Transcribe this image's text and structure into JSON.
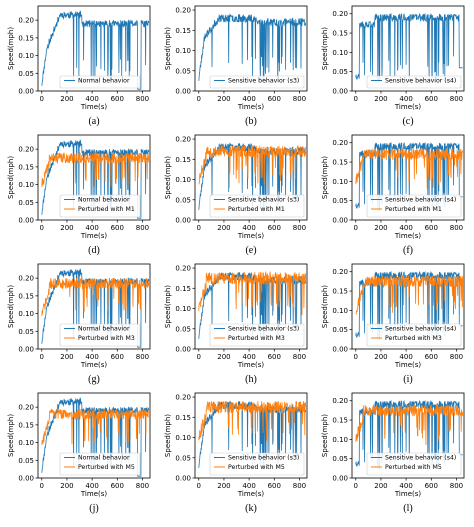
{
  "colors": {
    "normal": "#1f77b4",
    "perturbed": "#ff7f0e",
    "axes": "#000000"
  },
  "chart_data": [
    {
      "panel": "(a)",
      "type": "line",
      "ylabel": "Speed(mph)",
      "xlabel": "Time(s)",
      "xlim": [
        -30,
        860
      ],
      "ylim": [
        0,
        0.24
      ],
      "xticks": [
        0,
        200,
        400,
        600,
        800
      ],
      "yticks": [
        0.0,
        0.05,
        0.1,
        0.15,
        0.2
      ],
      "ytick_labels": [
        "0.00",
        "0.05",
        "0.10",
        "0.15",
        "0.20"
      ],
      "legend": "lower-center",
      "series": [
        {
          "name": "Normal behavior",
          "kind": "normal",
          "seed": 11
        }
      ]
    },
    {
      "panel": "(b)",
      "type": "line",
      "ylabel": "Speed(mph)",
      "xlabel": "Time(s)",
      "xlim": [
        -30,
        860
      ],
      "ylim": [
        0,
        0.21
      ],
      "xticks": [
        0,
        200,
        400,
        600,
        800
      ],
      "yticks": [
        0.0,
        0.05,
        0.1,
        0.15,
        0.2
      ],
      "ytick_labels": [
        "0.00",
        "0.05",
        "0.10",
        "0.15",
        "0.20"
      ],
      "legend": "lower-center",
      "series": [
        {
          "name": "Sensitive behavior (s3)",
          "kind": "s3",
          "seed": 23
        }
      ]
    },
    {
      "panel": "(c)",
      "type": "line",
      "ylabel": "Speed(mph)",
      "xlabel": "Time(s)",
      "xlim": [
        -30,
        860
      ],
      "ylim": [
        0,
        0.22
      ],
      "xticks": [
        0,
        200,
        400,
        600,
        800
      ],
      "yticks": [
        0.0,
        0.05,
        0.1,
        0.15,
        0.2
      ],
      "ytick_labels": [
        "0.00",
        "0.05",
        "0.10",
        "0.15",
        "0.20"
      ],
      "legend": "lower-center",
      "series": [
        {
          "name": "Sensitive behavior (s4)",
          "kind": "s4",
          "seed": 37
        }
      ]
    },
    {
      "panel": "(d)",
      "type": "line",
      "ylabel": "Speed(mph)",
      "xlabel": "Time(s)",
      "xlim": [
        -30,
        860
      ],
      "ylim": [
        0,
        0.24
      ],
      "xticks": [
        0,
        200,
        400,
        600,
        800
      ],
      "yticks": [
        0.0,
        0.05,
        0.1,
        0.15,
        0.2
      ],
      "ytick_labels": [
        "0.00",
        "0.05",
        "0.10",
        "0.15",
        "0.20"
      ],
      "legend": "lower-center",
      "series": [
        {
          "name": "Normal behavior",
          "kind": "normal",
          "seed": 11
        },
        {
          "name": "Perturbed with M1",
          "kind": "pert",
          "seed": 41,
          "level": 0.175
        }
      ]
    },
    {
      "panel": "(e)",
      "type": "line",
      "ylabel": "Speed(mph)",
      "xlabel": "Time(s)",
      "xlim": [
        -30,
        860
      ],
      "ylim": [
        0,
        0.21
      ],
      "xticks": [
        0,
        200,
        400,
        600,
        800
      ],
      "yticks": [
        0.0,
        0.05,
        0.1,
        0.15,
        0.2
      ],
      "ytick_labels": [
        "0.00",
        "0.05",
        "0.10",
        "0.15",
        "0.20"
      ],
      "legend": "lower-center",
      "series": [
        {
          "name": "Sensitive behavior (s3)",
          "kind": "s3",
          "seed": 23
        },
        {
          "name": "Perturbed with M1",
          "kind": "pert",
          "seed": 53,
          "level": 0.17
        }
      ]
    },
    {
      "panel": "(f)",
      "type": "line",
      "ylabel": "Speed(mph)",
      "xlabel": "Time(s)",
      "xlim": [
        -30,
        860
      ],
      "ylim": [
        0,
        0.22
      ],
      "xticks": [
        0,
        200,
        400,
        600,
        800
      ],
      "yticks": [
        0.0,
        0.05,
        0.1,
        0.15,
        0.2
      ],
      "ytick_labels": [
        "0.00",
        "0.05",
        "0.10",
        "0.15",
        "0.20"
      ],
      "legend": "lower-center",
      "series": [
        {
          "name": "Sensitive behavior (s4)",
          "kind": "s4",
          "seed": 37
        },
        {
          "name": "Perturbed with M1",
          "kind": "pert",
          "seed": 61,
          "level": 0.17
        }
      ]
    },
    {
      "panel": "(g)",
      "type": "line",
      "ylabel": "Speed(mph)",
      "xlabel": "Time(s)",
      "xlim": [
        -30,
        860
      ],
      "ylim": [
        0,
        0.24
      ],
      "xticks": [
        0,
        200,
        400,
        600,
        800
      ],
      "yticks": [
        0.0,
        0.05,
        0.1,
        0.15,
        0.2
      ],
      "ytick_labels": [
        "0.00",
        "0.05",
        "0.10",
        "0.15",
        "0.20"
      ],
      "legend": "lower-center",
      "series": [
        {
          "name": "Normal behavior",
          "kind": "normal",
          "seed": 11
        },
        {
          "name": "Perturbed with M3",
          "kind": "pert",
          "seed": 71,
          "level": 0.185
        }
      ]
    },
    {
      "panel": "(h)",
      "type": "line",
      "ylabel": "Speed(mph)",
      "xlabel": "Time(s)",
      "xlim": [
        -30,
        860
      ],
      "ylim": [
        0,
        0.21
      ],
      "xticks": [
        0,
        200,
        400,
        600,
        800
      ],
      "yticks": [
        0.0,
        0.05,
        0.1,
        0.15,
        0.2
      ],
      "ytick_labels": [
        "0.00",
        "0.05",
        "0.10",
        "0.15",
        "0.20"
      ],
      "legend": "lower-center",
      "series": [
        {
          "name": "Sensitive behavior (s3)",
          "kind": "s3",
          "seed": 23
        },
        {
          "name": "Perturbed with M3",
          "kind": "pert",
          "seed": 83,
          "level": 0.175
        }
      ]
    },
    {
      "panel": "(i)",
      "type": "line",
      "ylabel": "Speed(mph)",
      "xlabel": "Time(s)",
      "xlim": [
        -30,
        860
      ],
      "ylim": [
        0,
        0.22
      ],
      "xticks": [
        0,
        200,
        400,
        600,
        800
      ],
      "yticks": [
        0.0,
        0.05,
        0.1,
        0.15,
        0.2
      ],
      "ytick_labels": [
        "0.00",
        "0.05",
        "0.10",
        "0.15",
        "0.20"
      ],
      "legend": "lower-center",
      "series": [
        {
          "name": "Sensitive behavior (s4)",
          "kind": "s4",
          "seed": 37
        },
        {
          "name": "Perturbed with M3",
          "kind": "pert",
          "seed": 97,
          "level": 0.175
        }
      ]
    },
    {
      "panel": "(j)",
      "type": "line",
      "ylabel": "Speed(mph)",
      "xlabel": "Time(s)",
      "xlim": [
        -30,
        860
      ],
      "ylim": [
        0,
        0.24
      ],
      "xticks": [
        0,
        200,
        400,
        600,
        800
      ],
      "yticks": [
        0.0,
        0.05,
        0.1,
        0.15,
        0.2
      ],
      "ytick_labels": [
        "0.00",
        "0.05",
        "0.10",
        "0.15",
        "0.20"
      ],
      "legend": "lower-center",
      "series": [
        {
          "name": "Normal behavior",
          "kind": "normal",
          "seed": 11
        },
        {
          "name": "Perturbed with M5",
          "kind": "pert",
          "seed": 103,
          "level": 0.18
        }
      ]
    },
    {
      "panel": "(k)",
      "type": "line",
      "ylabel": "Speed(mph)",
      "xlabel": "Time(s)",
      "xlim": [
        -30,
        860
      ],
      "ylim": [
        0,
        0.21
      ],
      "xticks": [
        0,
        200,
        400,
        600,
        800
      ],
      "yticks": [
        0.0,
        0.05,
        0.1,
        0.15,
        0.2
      ],
      "ytick_labels": [
        "0.00",
        "0.05",
        "0.10",
        "0.15",
        "0.20"
      ],
      "legend": "lower-center",
      "series": [
        {
          "name": "Sensitive behavior (s3)",
          "kind": "s3",
          "seed": 23
        },
        {
          "name": "Perturbed with M5",
          "kind": "pert",
          "seed": 113,
          "level": 0.175
        }
      ]
    },
    {
      "panel": "(l)",
      "type": "line",
      "ylabel": "Speed(mph)",
      "xlabel": "Time(s)",
      "xlim": [
        -30,
        860
      ],
      "ylim": [
        0,
        0.22
      ],
      "xticks": [
        0,
        200,
        400,
        600,
        800
      ],
      "yticks": [
        0.0,
        0.05,
        0.1,
        0.15,
        0.2
      ],
      "ytick_labels": [
        "0.00",
        "0.05",
        "0.10",
        "0.15",
        "0.20"
      ],
      "legend": "lower-center",
      "series": [
        {
          "name": "Sensitive behavior (s4)",
          "kind": "s4",
          "seed": 37
        },
        {
          "name": "Perturbed with M5",
          "kind": "pert",
          "seed": 127,
          "level": 0.175
        }
      ]
    }
  ]
}
